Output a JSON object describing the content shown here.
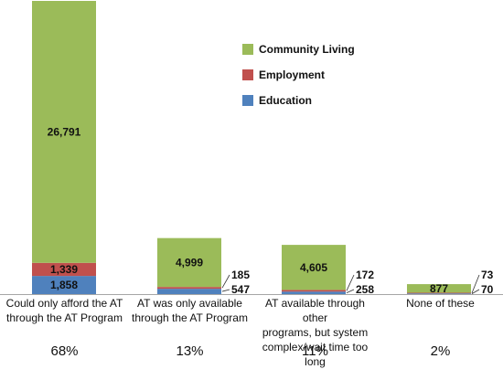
{
  "chart_data": {
    "type": "bar",
    "stacked": true,
    "categories": [
      "Could only afford the AT\nthrough the AT Program",
      "AT was only available\nthrough the AT Program",
      "AT available through other\nprograms, but system\ncomplex/wait time too long",
      "None of these"
    ],
    "percentages": [
      "68%",
      "13%",
      "11%",
      "2%"
    ],
    "series": [
      {
        "name": "Education",
        "color": "#4f81bd",
        "values": [
          1858,
          547,
          258,
          70
        ],
        "labels": [
          "1,858",
          "547",
          "258",
          "70"
        ]
      },
      {
        "name": "Employment",
        "color": "#c0504d",
        "values": [
          1339,
          185,
          172,
          73
        ],
        "labels": [
          "1,339",
          "185",
          "172",
          "73"
        ]
      },
      {
        "name": "Community Living",
        "color": "#9bbb59",
        "values": [
          26791,
          4999,
          4605,
          877
        ],
        "labels": [
          "26,791",
          "4,999",
          "4,605",
          "877"
        ]
      }
    ],
    "legend_position": "top-center",
    "grid": false
  }
}
